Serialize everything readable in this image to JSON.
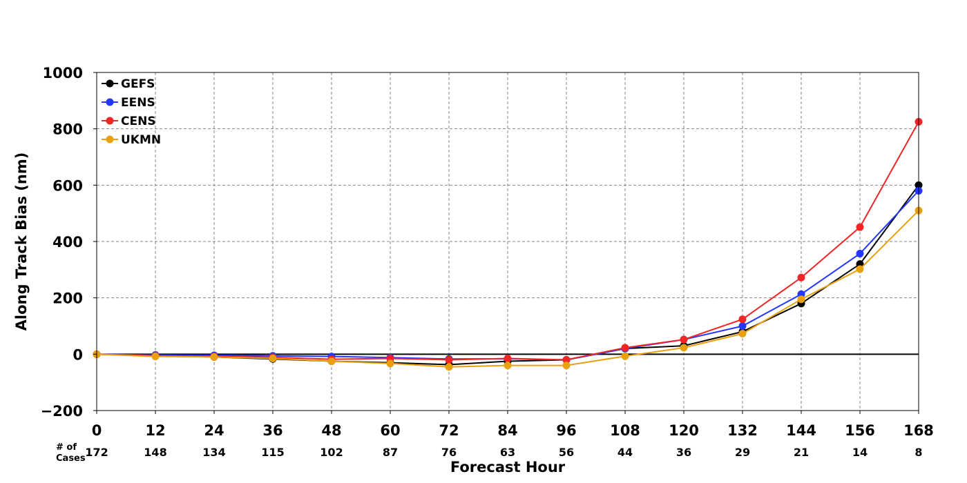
{
  "chart_data": {
    "type": "line",
    "title": "",
    "xlabel": "Forecast Hour",
    "ylabel": "Along Track Bias (nm)",
    "x": [
      0,
      12,
      24,
      36,
      48,
      60,
      72,
      84,
      96,
      108,
      120,
      132,
      144,
      156,
      168
    ],
    "xlim": [
      0,
      168
    ],
    "ylim": [
      -200,
      1000
    ],
    "yticks": [
      -200,
      0,
      200,
      400,
      600,
      800,
      1000
    ],
    "ytick_labels": [
      "−200",
      "0",
      "200",
      "400",
      "600",
      "800",
      "1000"
    ],
    "grid": true,
    "legend_position": "top-left",
    "zero_line": true,
    "cases_label": [
      "# of",
      "Cases"
    ],
    "cases": [
      172,
      148,
      134,
      115,
      102,
      87,
      76,
      63,
      56,
      44,
      36,
      29,
      21,
      14,
      8
    ],
    "series": [
      {
        "name": "GEFS",
        "color": "#000000",
        "values": [
          0,
          -5,
          -10,
          -17,
          -25,
          -30,
          -37,
          -25,
          -20,
          20,
          30,
          80,
          180,
          320,
          600
        ]
      },
      {
        "name": "EENS",
        "color": "#2237ff",
        "values": [
          0,
          -3,
          -4,
          -6,
          -8,
          -12,
          -17,
          -16,
          -20,
          20,
          52,
          100,
          213,
          357,
          580
        ]
      },
      {
        "name": "CENS",
        "color": "#f02525",
        "values": [
          0,
          -6,
          -8,
          -11,
          -18,
          -15,
          -20,
          -15,
          -20,
          23,
          52,
          124,
          272,
          451,
          825
        ]
      },
      {
        "name": "UKMN",
        "color": "#e8a00e",
        "values": [
          0,
          -8,
          -10,
          -15,
          -25,
          -33,
          -45,
          -40,
          -40,
          -7,
          23,
          73,
          195,
          302,
          510
        ]
      }
    ]
  }
}
